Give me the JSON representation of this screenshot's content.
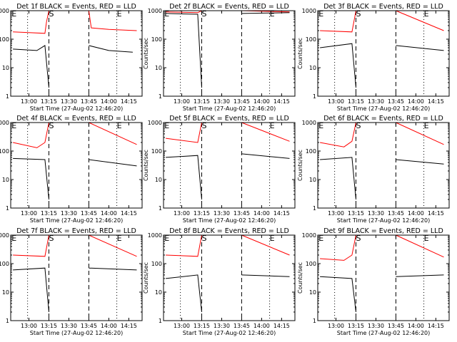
{
  "colors": {
    "events": "#000000",
    "lld": "#ff0000",
    "axes": "#000000",
    "background": "#ffffff"
  },
  "chart_data": [
    {
      "type": "line",
      "title": "Det 1f BLACK = Events, RED = LLD",
      "xlabel": "Start Time (27-Aug-02 12:46:20)",
      "ylabel": "Counts/sec",
      "yscale": "log",
      "ylim": [
        1,
        1000
      ],
      "xlim": [
        "12:46:20",
        "14:25"
      ],
      "x_ticks": [
        "13:00",
        "13:15",
        "13:30",
        "13:45",
        "14:00",
        "14:15"
      ],
      "y_ticks": [
        "1",
        "10",
        "100",
        "1000"
      ],
      "markers": [
        {
          "text": "E",
          "x": "12:47",
          "style": "dotted",
          "x_line": "12:59"
        },
        {
          "text": "S",
          "x": "13:15",
          "style": "dashed",
          "x_line": "13:15"
        },
        {
          "text": "E",
          "x": "14:06",
          "style": "dotted",
          "x_line": "14:06"
        }
      ],
      "dashed_lines": [
        "13:15",
        "13:45"
      ],
      "dotted_lines": [
        "12:59",
        "14:06"
      ],
      "series": [
        {
          "color": "#ff0000",
          "values": [
            [
              12.8,
              180
            ],
            [
              13.0,
              170
            ],
            [
              13.2,
              160
            ],
            [
              13.22,
              400
            ],
            [
              13.25,
              1000
            ]
          ]
        },
        {
          "color": "#ff0000",
          "values": [
            [
              13.75,
              1000
            ],
            [
              13.78,
              250
            ],
            [
              14.0,
              220
            ],
            [
              14.35,
              200
            ]
          ]
        },
        {
          "color": "#000000",
          "values": [
            [
              12.8,
              45
            ],
            [
              13.1,
              40
            ],
            [
              13.2,
              60
            ],
            [
              13.25,
              2
            ]
          ]
        },
        {
          "color": "#000000",
          "values": [
            [
              13.75,
              60
            ],
            [
              14.0,
              40
            ],
            [
              14.3,
              35
            ]
          ]
        }
      ]
    },
    {
      "type": "line",
      "title": "Det 2f BLACK = Events, RED = LLD",
      "xlabel": "Start Time (27-Aug-02 12:46:20)",
      "ylabel": "Counts/sec",
      "yscale": "log",
      "ylim": [
        1,
        1000
      ],
      "xlim": [
        "12:46:20",
        "14:25"
      ],
      "x_ticks": [
        "13:00",
        "13:15",
        "13:30",
        "13:45",
        "14:00",
        "14:15"
      ],
      "y_ticks": [
        "1",
        "10",
        "100",
        "1000"
      ],
      "markers": [
        {
          "text": "E",
          "x": "12:47",
          "style": "dotted",
          "x_line": "12:59"
        },
        {
          "text": "S",
          "x": "13:15",
          "style": "dashed",
          "x_line": "13:15"
        },
        {
          "text": "E",
          "x": "14:06",
          "style": "dotted",
          "x_line": "14:06"
        }
      ],
      "dashed_lines": [
        "13:15",
        "13:45"
      ],
      "dotted_lines": [
        "12:59",
        "14:06"
      ],
      "series": [
        {
          "color": "#ff0000",
          "values": [
            [
              12.8,
              900
            ],
            [
              13.2,
              850
            ],
            [
              13.25,
              1000
            ]
          ]
        },
        {
          "color": "#ff0000",
          "values": [
            [
              13.75,
              1000
            ],
            [
              14.35,
              900
            ]
          ]
        },
        {
          "color": "#000000",
          "values": [
            [
              12.8,
              800
            ],
            [
              13.2,
              750
            ],
            [
              13.25,
              2
            ]
          ]
        },
        {
          "color": "#000000",
          "values": [
            [
              13.75,
              800
            ],
            [
              14.35,
              850
            ]
          ]
        }
      ]
    },
    {
      "type": "line",
      "title": "Det 3f BLACK = Events, RED = LLD",
      "xlabel": "Start Time (27-Aug-02 12:46:20)",
      "ylabel": "Counts/sec",
      "yscale": "log",
      "ylim": [
        1,
        1000
      ],
      "xlim": [
        "12:46:20",
        "14:25"
      ],
      "x_ticks": [
        "13:00",
        "13:15",
        "13:30",
        "13:45",
        "14:00",
        "14:15"
      ],
      "y_ticks": [
        "1",
        "10",
        "100",
        "1000"
      ],
      "markers": [
        {
          "text": "E",
          "x": "12:47",
          "style": "dotted",
          "x_line": "12:59"
        },
        {
          "text": "S",
          "x": "13:15",
          "style": "dashed",
          "x_line": "13:15"
        },
        {
          "text": "E",
          "x": "14:06",
          "style": "dotted",
          "x_line": "14:06"
        }
      ],
      "dashed_lines": [
        "13:15",
        "13:45"
      ],
      "dotted_lines": [
        "12:59",
        "14:06"
      ],
      "series": [
        {
          "color": "#ff0000",
          "values": [
            [
              12.8,
              200
            ],
            [
              13.2,
              180
            ],
            [
              13.25,
              1000
            ]
          ]
        },
        {
          "color": "#ff0000",
          "values": [
            [
              13.75,
              1000
            ],
            [
              14.35,
              200
            ]
          ]
        },
        {
          "color": "#000000",
          "values": [
            [
              12.8,
              50
            ],
            [
              13.2,
              70
            ],
            [
              13.25,
              2
            ]
          ]
        },
        {
          "color": "#000000",
          "values": [
            [
              13.75,
              60
            ],
            [
              14.35,
              40
            ]
          ]
        }
      ]
    },
    {
      "type": "line",
      "title": "Det 4f BLACK = Events, RED = LLD",
      "xlabel": "Start Time (27-Aug-02 12:46:20)",
      "ylabel": "Counts/sec",
      "yscale": "log",
      "ylim": [
        1,
        1000
      ],
      "xlim": [
        "12:46:20",
        "14:25"
      ],
      "x_ticks": [
        "13:00",
        "13:15",
        "13:30",
        "13:45",
        "14:00",
        "14:15"
      ],
      "y_ticks": [
        "1",
        "10",
        "100",
        "1000"
      ],
      "markers": [
        {
          "text": "E",
          "x": "12:47",
          "style": "dotted",
          "x_line": "12:59"
        },
        {
          "text": "S",
          "x": "13:15",
          "style": "dashed",
          "x_line": "13:15"
        },
        {
          "text": "E",
          "x": "14:06",
          "style": "dotted",
          "x_line": "14:06"
        }
      ],
      "dashed_lines": [
        "13:15",
        "13:45"
      ],
      "dotted_lines": [
        "12:59",
        "14:06"
      ],
      "series": [
        {
          "color": "#ff0000",
          "values": [
            [
              12.8,
              200
            ],
            [
              13.1,
              130
            ],
            [
              13.2,
              200
            ],
            [
              13.25,
              1000
            ]
          ]
        },
        {
          "color": "#ff0000",
          "values": [
            [
              13.75,
              1000
            ],
            [
              14.35,
              170
            ]
          ]
        },
        {
          "color": "#000000",
          "values": [
            [
              12.8,
              55
            ],
            [
              13.2,
              50
            ],
            [
              13.25,
              2
            ]
          ]
        },
        {
          "color": "#000000",
          "values": [
            [
              13.75,
              50
            ],
            [
              14.35,
              30
            ]
          ]
        }
      ]
    },
    {
      "type": "line",
      "title": "Det 5f BLACK = Events, RED = LLD",
      "xlabel": "Start Time (27-Aug-02 12:46:20)",
      "ylabel": "Counts/sec",
      "yscale": "log",
      "ylim": [
        1,
        1000
      ],
      "xlim": [
        "12:46:20",
        "14:25"
      ],
      "x_ticks": [
        "13:00",
        "13:15",
        "13:30",
        "13:45",
        "14:00",
        "14:15"
      ],
      "y_ticks": [
        "1",
        "10",
        "100",
        "1000"
      ],
      "markers": [
        {
          "text": "E",
          "x": "12:47",
          "style": "dotted",
          "x_line": "12:59"
        },
        {
          "text": "S",
          "x": "13:15",
          "style": "dashed",
          "x_line": "13:15"
        },
        {
          "text": "E",
          "x": "14:06",
          "style": "dotted",
          "x_line": "14:06"
        }
      ],
      "dashed_lines": [
        "13:15",
        "13:45"
      ],
      "dotted_lines": [
        "12:59",
        "14:06"
      ],
      "series": [
        {
          "color": "#ff0000",
          "values": [
            [
              12.8,
              280
            ],
            [
              13.2,
              200
            ],
            [
              13.25,
              1000
            ]
          ]
        },
        {
          "color": "#ff0000",
          "values": [
            [
              13.75,
              1000
            ],
            [
              14.35,
              220
            ]
          ]
        },
        {
          "color": "#000000",
          "values": [
            [
              12.8,
              60
            ],
            [
              13.2,
              70
            ],
            [
              13.25,
              2
            ]
          ]
        },
        {
          "color": "#000000",
          "values": [
            [
              13.75,
              80
            ],
            [
              14.35,
              55
            ]
          ]
        }
      ]
    },
    {
      "type": "line",
      "title": "Det 6f BLACK = Events, RED = LLD",
      "xlabel": "Start Time (27-Aug-02 12:46:20)",
      "ylabel": "Counts/sec",
      "yscale": "log",
      "ylim": [
        1,
        1000
      ],
      "xlim": [
        "12:46:20",
        "14:25"
      ],
      "x_ticks": [
        "13:00",
        "13:15",
        "13:30",
        "13:45",
        "14:00",
        "14:15"
      ],
      "y_ticks": [
        "1",
        "10",
        "100",
        "1000"
      ],
      "markers": [
        {
          "text": "E",
          "x": "12:47",
          "style": "dotted",
          "x_line": "12:59"
        },
        {
          "text": "S",
          "x": "13:15",
          "style": "dashed",
          "x_line": "13:15"
        },
        {
          "text": "E",
          "x": "14:06",
          "style": "dotted",
          "x_line": "14:06"
        }
      ],
      "dashed_lines": [
        "13:15",
        "13:45"
      ],
      "dotted_lines": [
        "12:59",
        "14:06"
      ],
      "series": [
        {
          "color": "#ff0000",
          "values": [
            [
              12.8,
              200
            ],
            [
              13.1,
              140
            ],
            [
              13.2,
              220
            ],
            [
              13.25,
              1000
            ]
          ]
        },
        {
          "color": "#ff0000",
          "values": [
            [
              13.75,
              1000
            ],
            [
              14.35,
              170
            ]
          ]
        },
        {
          "color": "#000000",
          "values": [
            [
              12.8,
              50
            ],
            [
              13.2,
              60
            ],
            [
              13.25,
              2
            ]
          ]
        },
        {
          "color": "#000000",
          "values": [
            [
              13.75,
              50
            ],
            [
              14.35,
              35
            ]
          ]
        }
      ]
    },
    {
      "type": "line",
      "title": "Det 7f BLACK = Events, RED = LLD",
      "xlabel": "Start Time (27-Aug-02 12:46:20)",
      "ylabel": "Counts/sec",
      "yscale": "log",
      "ylim": [
        1,
        1000
      ],
      "xlim": [
        "12:46:20",
        "14:25"
      ],
      "x_ticks": [
        "13:00",
        "13:15",
        "13:30",
        "13:45",
        "14:00",
        "14:15"
      ],
      "y_ticks": [
        "1",
        "10",
        "100",
        "1000"
      ],
      "markers": [
        {
          "text": "E",
          "x": "12:47",
          "style": "dotted",
          "x_line": "12:59"
        },
        {
          "text": "S",
          "x": "13:15",
          "style": "dashed",
          "x_line": "13:15"
        },
        {
          "text": "E",
          "x": "14:06",
          "style": "dotted",
          "x_line": "14:06"
        }
      ],
      "dashed_lines": [
        "13:15",
        "13:45"
      ],
      "dotted_lines": [
        "12:59",
        "14:06"
      ],
      "series": [
        {
          "color": "#ff0000",
          "values": [
            [
              12.8,
              200
            ],
            [
              13.2,
              180
            ],
            [
              13.25,
              1000
            ]
          ]
        },
        {
          "color": "#ff0000",
          "values": [
            [
              13.75,
              1000
            ],
            [
              14.35,
              180
            ]
          ]
        },
        {
          "color": "#000000",
          "values": [
            [
              12.8,
              60
            ],
            [
              13.2,
              70
            ],
            [
              13.25,
              2
            ]
          ]
        },
        {
          "color": "#000000",
          "values": [
            [
              13.75,
              70
            ],
            [
              14.35,
              60
            ]
          ]
        }
      ]
    },
    {
      "type": "line",
      "title": "Det 8f BLACK = Events, RED = LLD",
      "xlabel": "Start Time (27-Aug-02 12:46:20)",
      "ylabel": "Counts/sec",
      "yscale": "log",
      "ylim": [
        1,
        1000
      ],
      "xlim": [
        "12:46:20",
        "14:25"
      ],
      "x_ticks": [
        "13:00",
        "13:15",
        "13:30",
        "13:45",
        "14:00",
        "14:15"
      ],
      "y_ticks": [
        "1",
        "10",
        "100",
        "1000"
      ],
      "markers": [
        {
          "text": "E",
          "x": "12:47",
          "style": "dotted",
          "x_line": "12:59"
        },
        {
          "text": "S",
          "x": "13:15",
          "style": "dashed",
          "x_line": "13:15"
        },
        {
          "text": "E",
          "x": "14:06",
          "style": "dotted",
          "x_line": "14:06"
        }
      ],
      "dashed_lines": [
        "13:15",
        "13:45"
      ],
      "dotted_lines": [
        "12:59",
        "14:06"
      ],
      "series": [
        {
          "color": "#ff0000",
          "values": [
            [
              12.8,
              200
            ],
            [
              13.2,
              180
            ],
            [
              13.25,
              1000
            ]
          ]
        },
        {
          "color": "#ff0000",
          "values": [
            [
              13.75,
              1000
            ],
            [
              14.35,
              200
            ]
          ]
        },
        {
          "color": "#000000",
          "values": [
            [
              12.8,
              30
            ],
            [
              13.2,
              40
            ],
            [
              13.25,
              2
            ]
          ]
        },
        {
          "color": "#000000",
          "values": [
            [
              13.75,
              40
            ],
            [
              14.35,
              35
            ]
          ]
        }
      ]
    },
    {
      "type": "line",
      "title": "Det 9f BLACK = Events, RED = LLD",
      "xlabel": "Start Time (27-Aug-02 12:46:20)",
      "ylabel": "Counts/sec",
      "yscale": "log",
      "ylim": [
        1,
        1000
      ],
      "xlim": [
        "12:46:20",
        "14:25"
      ],
      "x_ticks": [
        "13:00",
        "13:15",
        "13:30",
        "13:45",
        "14:00",
        "14:15"
      ],
      "y_ticks": [
        "1",
        "10",
        "100",
        "1000"
      ],
      "markers": [
        {
          "text": "E",
          "x": "12:47",
          "style": "dotted",
          "x_line": "12:59"
        },
        {
          "text": "S",
          "x": "13:15",
          "style": "dashed",
          "x_line": "13:15"
        },
        {
          "text": "E",
          "x": "14:06",
          "style": "dotted",
          "x_line": "14:06"
        }
      ],
      "dashed_lines": [
        "13:15",
        "13:45"
      ],
      "dotted_lines": [
        "12:59",
        "14:06"
      ],
      "series": [
        {
          "color": "#ff0000",
          "values": [
            [
              12.8,
              150
            ],
            [
              13.1,
              130
            ],
            [
              13.2,
              200
            ],
            [
              13.25,
              1000
            ]
          ]
        },
        {
          "color": "#ff0000",
          "values": [
            [
              13.75,
              1000
            ],
            [
              14.35,
              170
            ]
          ]
        },
        {
          "color": "#000000",
          "values": [
            [
              12.8,
              35
            ],
            [
              13.2,
              30
            ],
            [
              13.25,
              2
            ]
          ]
        },
        {
          "color": "#000000",
          "values": [
            [
              13.75,
              35
            ],
            [
              14.35,
              40
            ]
          ]
        }
      ]
    }
  ]
}
